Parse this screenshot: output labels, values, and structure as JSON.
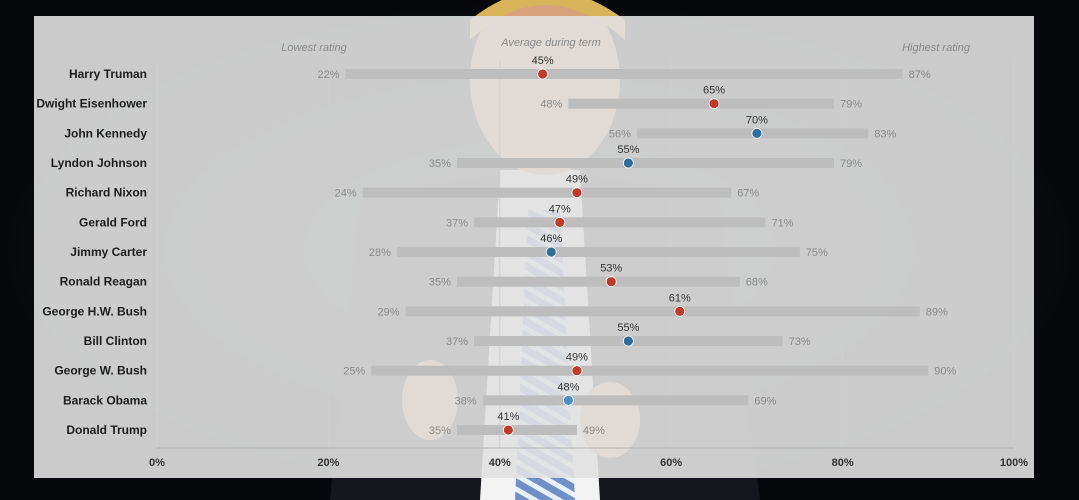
{
  "chart_data": {
    "type": "range-dot",
    "column_headers": {
      "lowest": "Lowest rating",
      "average": "Average during term",
      "highest": "Highest rating"
    },
    "xlim": [
      0,
      100
    ],
    "x_ticks": [
      "0%",
      "20%",
      "40%",
      "60%",
      "80%",
      "100%"
    ],
    "value_suffix": "%",
    "grid": true,
    "colors": {
      "republican": "#c0392b",
      "democrat": "#2e6e9e",
      "highlight": "#4d8fc4",
      "range_bar": "#bdbdbd"
    },
    "rows": [
      {
        "name": "Harry Truman",
        "low": 22,
        "avg": 45,
        "high": 87,
        "party": "republican"
      },
      {
        "name": "Dwight Eisenhower",
        "low": 48,
        "avg": 65,
        "high": 79,
        "party": "republican"
      },
      {
        "name": "John Kennedy",
        "low": 56,
        "avg": 70,
        "high": 83,
        "party": "democrat"
      },
      {
        "name": "Lyndon Johnson",
        "low": 35,
        "avg": 55,
        "high": 79,
        "party": "democrat"
      },
      {
        "name": "Richard Nixon",
        "low": 24,
        "avg": 49,
        "high": 67,
        "party": "republican"
      },
      {
        "name": "Gerald Ford",
        "low": 37,
        "avg": 47,
        "high": 71,
        "party": "republican"
      },
      {
        "name": "Jimmy Carter",
        "low": 28,
        "avg": 46,
        "high": 75,
        "party": "democrat"
      },
      {
        "name": "Ronald Reagan",
        "low": 35,
        "avg": 53,
        "high": 68,
        "party": "republican"
      },
      {
        "name": "George H.W. Bush",
        "low": 29,
        "avg": 61,
        "high": 89,
        "party": "republican"
      },
      {
        "name": "Bill Clinton",
        "low": 37,
        "avg": 55,
        "high": 73,
        "party": "democrat"
      },
      {
        "name": "George W. Bush",
        "low": 25,
        "avg": 49,
        "high": 90,
        "party": "republican"
      },
      {
        "name": "Barack Obama",
        "low": 38,
        "avg": 48,
        "high": 69,
        "party": "highlight"
      },
      {
        "name": "Donald Trump",
        "low": 35,
        "avg": 41,
        "high": 49,
        "party": "republican"
      }
    ]
  }
}
